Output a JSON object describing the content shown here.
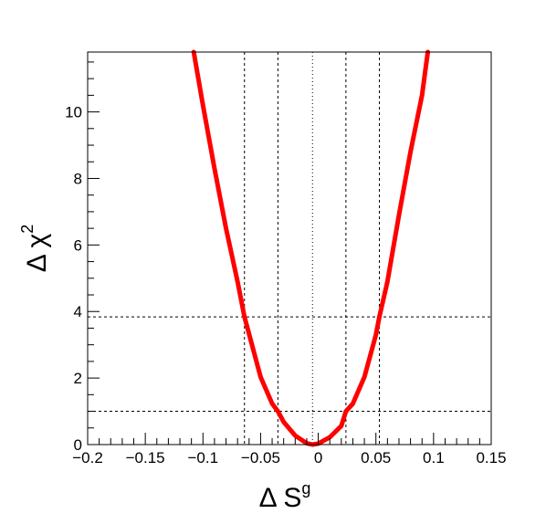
{
  "chart_data": {
    "type": "line",
    "title": "",
    "xlabel": {
      "base": "Δ S",
      "sup": "g"
    },
    "ylabel": {
      "base": "Δ χ",
      "sup": "2"
    },
    "xlim": [
      -0.2,
      0.15
    ],
    "ylim": [
      0,
      11.8
    ],
    "x_ticks": [
      -0.2,
      -0.15,
      -0.1,
      -0.05,
      0,
      0.05,
      0.1,
      0.15
    ],
    "x_tick_labels": [
      "−0.2",
      "−0.15",
      "−0.1",
      "−0.05",
      "0",
      "0.05",
      "0.1",
      "0.15"
    ],
    "y_ticks": [
      0,
      2,
      4,
      6,
      8,
      10
    ],
    "y_tick_labels": [
      "0",
      "2",
      "4",
      "6",
      "8",
      "10"
    ],
    "grid": false,
    "series": [
      {
        "color": "#ff0000",
        "x": [
          -0.108,
          -0.1,
          -0.09,
          -0.08,
          -0.07,
          -0.064,
          -0.05,
          -0.04,
          -0.035,
          -0.03,
          -0.02,
          -0.01,
          -0.005,
          0.0,
          0.01,
          0.02,
          0.024,
          0.03,
          0.04,
          0.05,
          0.053,
          0.06,
          0.07,
          0.08,
          0.09,
          0.095
        ],
        "y": [
          11.8,
          10.2,
          8.3,
          6.5,
          4.9,
          3.84,
          2.03,
          1.23,
          1.0,
          0.68,
          0.27,
          0.04,
          0.0,
          0.03,
          0.22,
          0.56,
          1.0,
          1.23,
          2.03,
          3.3,
          3.84,
          4.9,
          6.9,
          8.8,
          10.5,
          11.8
        ]
      }
    ],
    "reference_lines": {
      "horizontal_y": [
        1.0,
        3.84
      ],
      "vertical_x": [
        -0.064,
        -0.035,
        -0.005,
        0.024,
        0.053
      ],
      "style": "dashed",
      "color": "#000000"
    }
  }
}
